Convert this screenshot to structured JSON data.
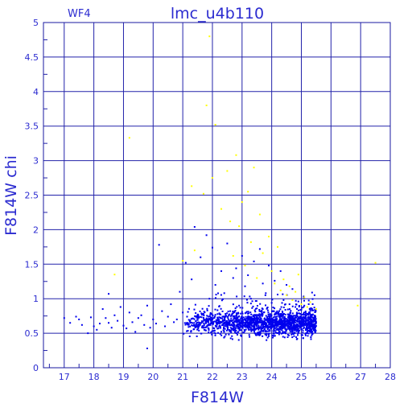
{
  "chart_data": {
    "type": "scatter",
    "title": "lmc_u4b110",
    "panel_label": "WF4",
    "xlabel": "F814W",
    "ylabel": "F814W chi",
    "xlim": [
      16.3,
      28
    ],
    "ylim": [
      0,
      5
    ],
    "xticks": [
      "17",
      "18",
      "19",
      "20",
      "21",
      "22",
      "23",
      "24",
      "25",
      "26",
      "27",
      "28"
    ],
    "yticks": [
      "0",
      "0.5",
      "1",
      "1.5",
      "2",
      "2.5",
      "3",
      "3.5",
      "4",
      "4.5",
      "5"
    ],
    "grid": true,
    "series": [
      {
        "color": "#0000ee",
        "points": [
          [
            17.0,
            0.72
          ],
          [
            17.2,
            0.65
          ],
          [
            17.4,
            0.74
          ],
          [
            17.5,
            0.7
          ],
          [
            17.6,
            0.62
          ],
          [
            17.8,
            0.5
          ],
          [
            17.9,
            0.73
          ],
          [
            18.0,
            0.6
          ],
          [
            18.1,
            0.55
          ],
          [
            18.2,
            0.64
          ],
          [
            18.3,
            0.85
          ],
          [
            18.4,
            0.72
          ],
          [
            18.5,
            0.65
          ],
          [
            18.5,
            1.07
          ],
          [
            18.6,
            0.58
          ],
          [
            18.7,
            0.76
          ],
          [
            18.8,
            0.68
          ],
          [
            18.9,
            0.88
          ],
          [
            19.0,
            0.61
          ],
          [
            19.1,
            0.57
          ],
          [
            19.2,
            0.8
          ],
          [
            19.3,
            0.66
          ],
          [
            19.4,
            0.52
          ],
          [
            19.5,
            0.72
          ],
          [
            19.6,
            0.76
          ],
          [
            19.7,
            0.62
          ],
          [
            19.8,
            0.28
          ],
          [
            19.8,
            0.9
          ],
          [
            19.9,
            0.58
          ],
          [
            20.0,
            0.7
          ],
          [
            20.1,
            0.64
          ],
          [
            20.2,
            1.78
          ],
          [
            20.3,
            0.82
          ],
          [
            20.4,
            0.6
          ],
          [
            20.5,
            0.74
          ],
          [
            20.6,
            0.92
          ],
          [
            20.7,
            0.66
          ],
          [
            20.8,
            0.7
          ],
          [
            20.9,
            1.1
          ],
          [
            21.0,
            0.8
          ],
          [
            21.1,
            1.52
          ],
          [
            21.2,
            0.62
          ],
          [
            21.3,
            1.28
          ],
          [
            21.4,
            2.04
          ],
          [
            21.5,
            0.72
          ],
          [
            21.6,
            1.6
          ],
          [
            21.7,
            0.78
          ],
          [
            21.8,
            1.92
          ],
          [
            21.9,
            1.0
          ],
          [
            22.0,
            1.74
          ],
          [
            22.1,
            1.2
          ],
          [
            22.2,
            0.66
          ],
          [
            22.3,
            1.4
          ],
          [
            22.4,
            1.08
          ],
          [
            22.5,
            1.8
          ],
          [
            22.6,
            0.82
          ],
          [
            22.7,
            1.3
          ],
          [
            22.8,
            1.44
          ],
          [
            22.9,
            0.9
          ],
          [
            23.0,
            1.62
          ],
          [
            23.1,
            1.18
          ],
          [
            23.2,
            1.34
          ],
          [
            23.3,
            1.0
          ],
          [
            23.4,
            1.54
          ],
          [
            23.5,
            0.86
          ],
          [
            23.6,
            1.72
          ],
          [
            23.7,
            1.22
          ],
          [
            23.8,
            1.08
          ],
          [
            23.9,
            1.48
          ],
          [
            24.0,
            0.94
          ],
          [
            24.1,
            1.26
          ],
          [
            24.2,
            1.06
          ],
          [
            24.3,
            1.4
          ],
          [
            24.4,
            0.98
          ],
          [
            24.5,
            1.2
          ],
          [
            24.6,
            0.92
          ],
          [
            24.7,
            1.14
          ],
          [
            24.8,
            0.88
          ],
          [
            24.9,
            0.96
          ],
          [
            25.0,
            0.84
          ],
          [
            25.1,
            0.9
          ],
          [
            25.2,
            0.78
          ],
          [
            25.3,
            0.82
          ],
          [
            25.4,
            0.72
          ]
        ]
      },
      {
        "color": "#ffff00",
        "points": [
          [
            18.7,
            1.35
          ],
          [
            19.2,
            3.33
          ],
          [
            21.0,
            1.55
          ],
          [
            21.3,
            2.63
          ],
          [
            21.4,
            1.7
          ],
          [
            21.7,
            2.52
          ],
          [
            21.8,
            3.8
          ],
          [
            21.9,
            4.8
          ],
          [
            22.0,
            2.75
          ],
          [
            22.1,
            3.52
          ],
          [
            22.3,
            2.3
          ],
          [
            22.5,
            2.85
          ],
          [
            22.6,
            2.12
          ],
          [
            22.7,
            1.62
          ],
          [
            22.8,
            3.08
          ],
          [
            22.9,
            2.05
          ],
          [
            23.0,
            2.4
          ],
          [
            23.1,
            1.48
          ],
          [
            23.2,
            2.55
          ],
          [
            23.3,
            1.82
          ],
          [
            23.4,
            2.9
          ],
          [
            23.5,
            1.3
          ],
          [
            23.6,
            2.22
          ],
          [
            23.7,
            1.66
          ],
          [
            23.9,
            1.9
          ],
          [
            24.0,
            1.4
          ],
          [
            24.1,
            1.22
          ],
          [
            24.2,
            1.75
          ],
          [
            24.3,
            1.12
          ],
          [
            24.4,
            1.28
          ],
          [
            24.5,
            1.05
          ],
          [
            24.6,
            1.18
          ],
          [
            24.7,
            0.98
          ],
          [
            24.8,
            1.1
          ],
          [
            24.9,
            1.35
          ],
          [
            25.0,
            0.92
          ],
          [
            25.1,
            1.02
          ],
          [
            25.2,
            0.88
          ],
          [
            25.3,
            0.95
          ],
          [
            25.5,
            0.85
          ],
          [
            26.9,
            0.9
          ],
          [
            27.5,
            1.52
          ]
        ]
      }
    ]
  }
}
